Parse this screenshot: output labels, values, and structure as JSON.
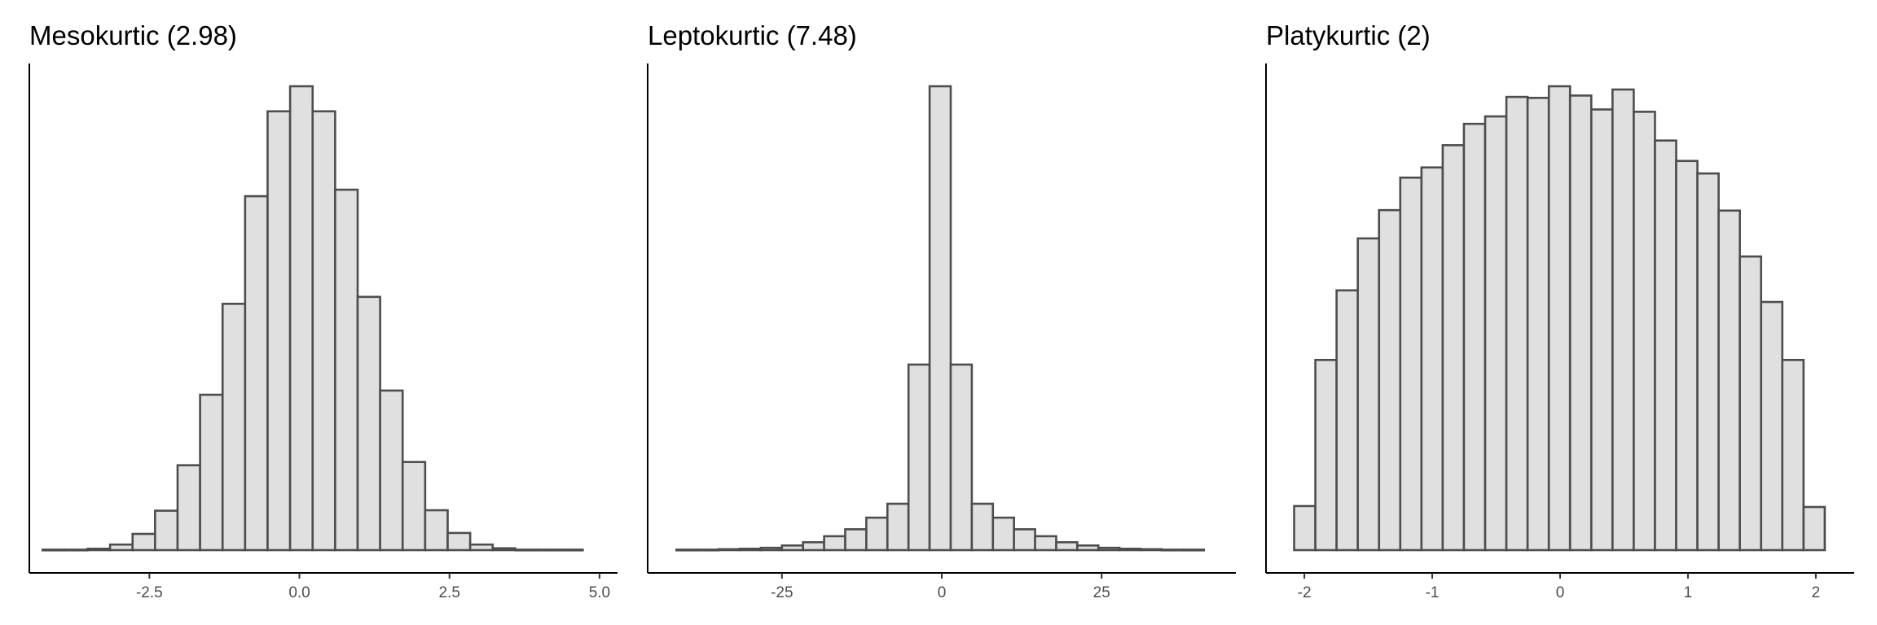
{
  "colors": {
    "bar_fill": "#e0e0e0",
    "bar_stroke": "#4d4d4d"
  },
  "chart_data": [
    {
      "type": "bar",
      "title": "Mesokurtic (2.98)",
      "xlabel": "",
      "ylabel": "",
      "grid": false,
      "xlim": [
        -4.5,
        5.3
      ],
      "ylim": [
        0,
        1000
      ],
      "bin_start": -4.28,
      "bin_width": 0.375,
      "counts": [
        1,
        1,
        3,
        12,
        35,
        85,
        183,
        335,
        531,
        763,
        946,
        1000,
        946,
        777,
        546,
        344,
        190,
        86,
        37,
        12,
        4,
        1,
        1,
        1
      ],
      "xticks": [
        -2.5,
        0.0,
        2.5,
        5.0
      ],
      "xtick_labels": [
        "-2.5",
        "0.0",
        "2.5",
        "5.0"
      ]
    },
    {
      "type": "bar",
      "title": "Leptokurtic (7.48)",
      "xlabel": "",
      "ylabel": "",
      "grid": false,
      "xlim": [
        -46,
        46
      ],
      "ylim": [
        0,
        1000
      ],
      "bin_start": -41.5,
      "bin_width": 3.3,
      "counts": [
        1,
        1,
        2,
        3,
        5,
        10,
        17,
        30,
        45,
        70,
        100,
        400,
        1000,
        400,
        100,
        70,
        45,
        30,
        17,
        10,
        5,
        3,
        2,
        1,
        1
      ],
      "xticks": [
        -25,
        0,
        25
      ],
      "xtick_labels": [
        "-25",
        "0",
        "25"
      ]
    },
    {
      "type": "bar",
      "title": "Platykurtic (2)",
      "xlabel": "",
      "ylabel": "",
      "grid": false,
      "xlim": [
        -2.3,
        2.3
      ],
      "ylim": [
        0,
        1000
      ],
      "bin_start": -2.08,
      "bin_width": 0.166,
      "counts": [
        95,
        410,
        560,
        672,
        733,
        803,
        825,
        873,
        919,
        935,
        977,
        975,
        1000,
        980,
        950,
        993,
        945,
        883,
        839,
        812,
        732,
        633,
        535,
        410,
        93
      ],
      "xticks": [
        -2,
        -1,
        0,
        1,
        2
      ],
      "xtick_labels": [
        "-2",
        "-1",
        "0",
        "1",
        "2"
      ]
    }
  ]
}
